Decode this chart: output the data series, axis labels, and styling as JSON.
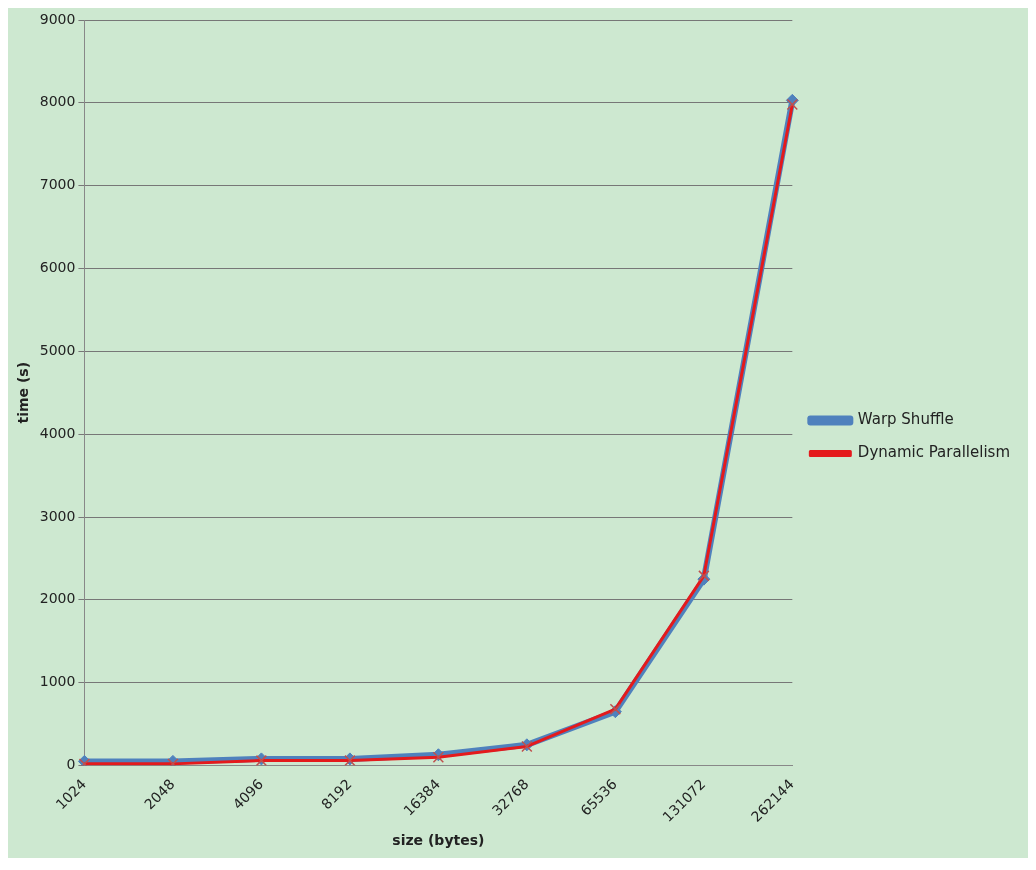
{
  "chart_data": {
    "type": "line",
    "xlabel": "size (bytes)",
    "ylabel": "time (s)",
    "categories": [
      "1024",
      "2048",
      "4096",
      "8192",
      "16384",
      "32768",
      "65536",
      "131072",
      "262144"
    ],
    "series": [
      {
        "name": "Warp Shuffle",
        "color": "#4f81bd",
        "marker": "diamond",
        "values": [
          50,
          50,
          80,
          80,
          130,
          250,
          650,
          2250,
          8030
        ]
      },
      {
        "name": "Dynamic Parallelism",
        "color": "#e41a1c",
        "marker": "cross",
        "values": [
          20,
          20,
          60,
          60,
          100,
          230,
          680,
          2290,
          7980
        ]
      }
    ],
    "ylim": [
      0,
      9000
    ],
    "yticks": [
      0,
      1000,
      2000,
      3000,
      4000,
      5000,
      6000,
      7000,
      8000,
      9000
    ],
    "grid": "y",
    "legend": "right"
  }
}
